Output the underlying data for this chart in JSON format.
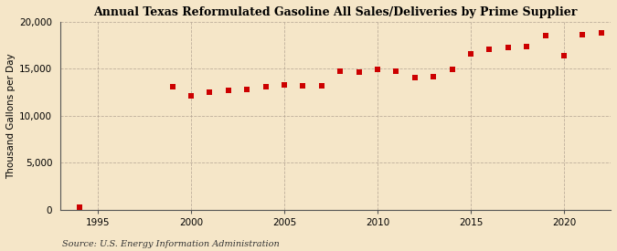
{
  "title": "Annual Texas Reformulated Gasoline All Sales/Deliveries by Prime Supplier",
  "ylabel": "Thousand Gallons per Day",
  "source": "Source: U.S. Energy Information Administration",
  "background_color": "#f5e6c8",
  "plot_bg_color": "#f5e6c8",
  "marker_color": "#cc0000",
  "marker": "s",
  "marker_size": 4,
  "xlim": [
    1993,
    2022.5
  ],
  "ylim": [
    0,
    20000
  ],
  "yticks": [
    0,
    5000,
    10000,
    15000,
    20000
  ],
  "xticks": [
    1995,
    2000,
    2005,
    2010,
    2015,
    2020
  ],
  "years": [
    1994,
    1999,
    2000,
    2001,
    2002,
    2003,
    2004,
    2005,
    2006,
    2007,
    2008,
    2009,
    2010,
    2011,
    2012,
    2013,
    2014,
    2015,
    2016,
    2017,
    2018,
    2019,
    2020,
    2021,
    2022
  ],
  "values": [
    300,
    13100,
    12150,
    12500,
    12750,
    12800,
    13050,
    13300,
    13150,
    13200,
    14700,
    14600,
    14900,
    14750,
    14100,
    14200,
    14900,
    16600,
    17100,
    17250,
    17350,
    18500,
    16350,
    18600,
    18850
  ]
}
